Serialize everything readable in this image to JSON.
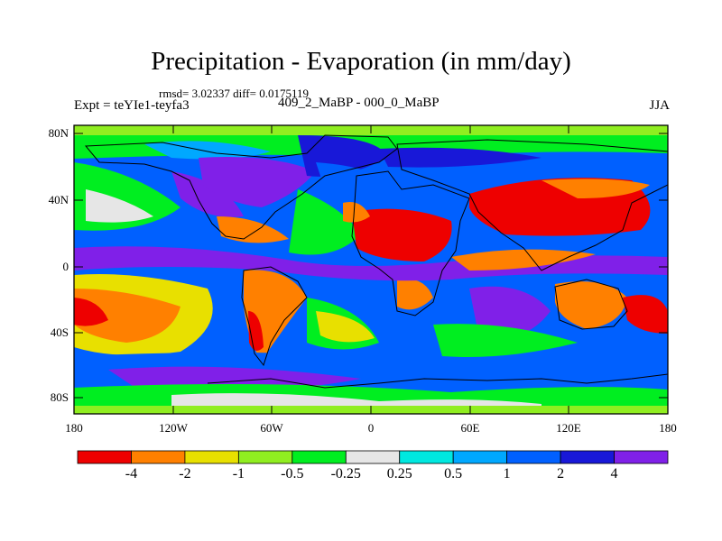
{
  "header": {
    "title": "Precipitation - Evaporation (in mm/day)",
    "stats": "rmsd= 3.02337 diff= 0.0175119",
    "expt": "Expt = teYIe1-teyfa3",
    "center_label": "409_2_MaBP - 000_0_MaBP",
    "season": "JJA"
  },
  "axes": {
    "y_ticks": [
      "80N",
      "40N",
      "0",
      "40S",
      "80S"
    ],
    "x_ticks": [
      "180",
      "120W",
      "60W",
      "0",
      "60E",
      "120E",
      "180"
    ]
  },
  "colorbar": {
    "colors": [
      "#ee0000",
      "#ff8000",
      "#e8e000",
      "#90ee20",
      "#00ee20",
      "#e6e6e6",
      "#00e8e0",
      "#00a8ff",
      "#0060ff",
      "#1818d8",
      "#8020e8"
    ],
    "labels": [
      "-4",
      "-2",
      "-1",
      "-0.5",
      "-0.25",
      "0.25",
      "0.5",
      "1",
      "2",
      "4"
    ]
  }
}
